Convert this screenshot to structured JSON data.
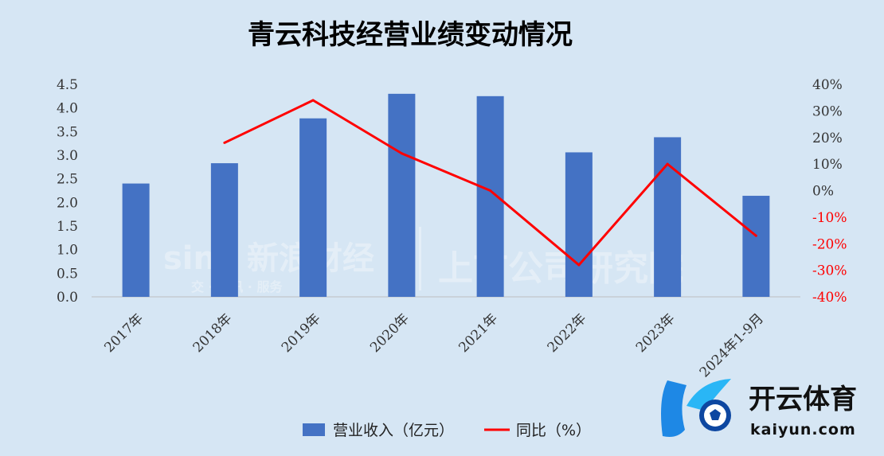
{
  "chart_data": {
    "type": "bar+line",
    "title": "青云科技经营业绩变动情况",
    "categories": [
      "2017年",
      "2018年",
      "2019年",
      "2020年",
      "2021年",
      "2022年",
      "2023年",
      "2024年1-9月"
    ],
    "series": [
      {
        "name": "营业收入（亿元）",
        "type": "bar",
        "axis": "left",
        "color": "#4472c4",
        "values": [
          2.4,
          2.83,
          3.78,
          4.3,
          4.25,
          3.06,
          3.38,
          2.14
        ]
      },
      {
        "name": "同比（%）",
        "type": "line",
        "axis": "right",
        "color": "#ff0000",
        "values": [
          null,
          18,
          34,
          14,
          0,
          -28,
          10,
          -17
        ]
      }
    ],
    "left_axis": {
      "ylim": [
        0,
        4.5
      ],
      "ticks": [
        "0.0",
        "0.5",
        "1.0",
        "1.5",
        "2.0",
        "2.5",
        "3.0",
        "3.5",
        "4.0",
        "4.5"
      ]
    },
    "right_axis": {
      "ylim": [
        -40,
        40
      ],
      "ticks": [
        "-40%",
        "-30%",
        "-20%",
        "-10%",
        "0%",
        "10%",
        "20%",
        "30%",
        "40%"
      ]
    },
    "negative_tick_color": "#ff0000",
    "positive_tick_color": "#333333",
    "grid": false,
    "legend_position": "bottom"
  },
  "watermark": {
    "logo": "sina",
    "text1": "新浪财经",
    "text2": "上市公司研究院",
    "sub": "交 · 资讯 · 服务"
  },
  "brand": {
    "name": "开云体育",
    "domain": "kaiyun.com"
  },
  "colors": {
    "background": "#d6e6f4",
    "bar": "#4472c4",
    "line": "#ff0000",
    "axis": "#bfbfbf"
  }
}
